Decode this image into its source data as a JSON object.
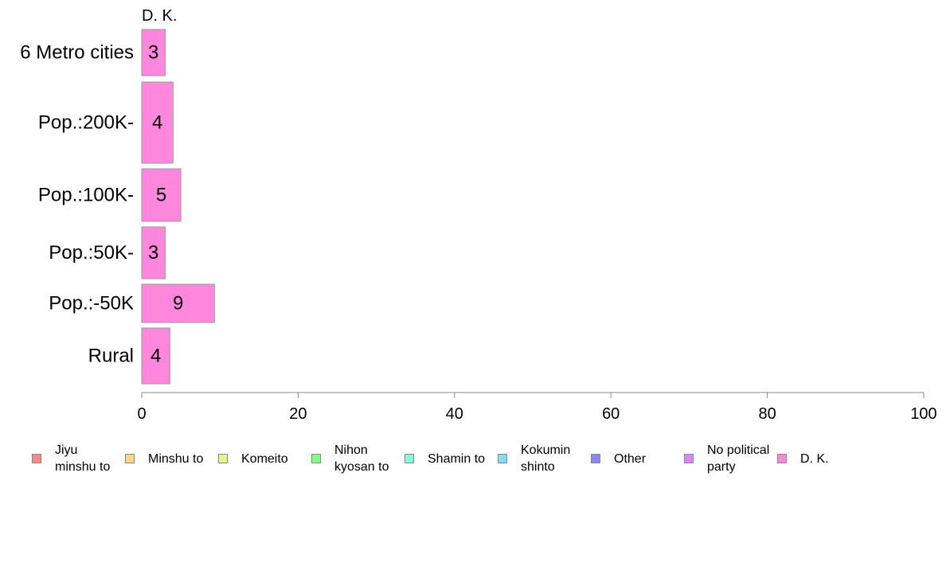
{
  "chart_data": {
    "type": "bar",
    "orientation": "horizontal",
    "title": "",
    "xlabel": "",
    "ylabel": "",
    "xlim": [
      0,
      100
    ],
    "x_ticks": [
      0,
      20,
      40,
      60,
      80,
      100
    ],
    "grid": false,
    "legend_position": "bottom",
    "categories": [
      "6 Metro cities",
      "Pop.:200K-",
      "Pop.:100K-",
      "Pop.:50K-",
      "Pop.:-50K",
      "Rural"
    ],
    "series": [
      {
        "name": "D. K.",
        "color": "#ff88dd",
        "values": [
          3,
          4,
          5,
          3,
          9.3,
          3.6
        ],
        "labels": [
          "3",
          "4",
          "5",
          "3",
          "9",
          "4"
        ]
      }
    ],
    "legend": [
      {
        "label": "Jiyu minshu to",
        "color": "#f88888"
      },
      {
        "label": "Minshu to",
        "color": "#fdd888"
      },
      {
        "label": "Komeito",
        "color": "#e2f888"
      },
      {
        "label": "Nihon kyosan to",
        "color": "#88f888"
      },
      {
        "label": "Shamin to",
        "color": "#88fdd8"
      },
      {
        "label": "Kokumin shinto",
        "color": "#88d8f8"
      },
      {
        "label": "Other",
        "color": "#8888f8"
      },
      {
        "label": "No political party",
        "color": "#dd88f8"
      },
      {
        "label": "D. K.",
        "color": "#ff88dd"
      }
    ]
  }
}
